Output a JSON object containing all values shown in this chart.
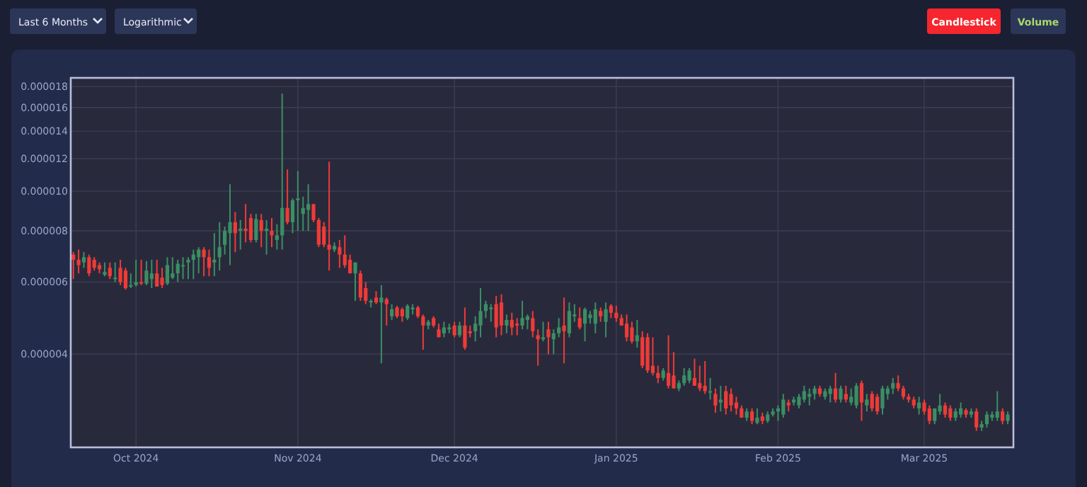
{
  "chart_data": {
    "type": "candlestick",
    "log": true,
    "grid": true,
    "annotations": [
      "Last 6 Months",
      "Logarithmic",
      "Candlestick",
      "Volume"
    ],
    "xlim": [
      "2024-09-18T12:00",
      "2025-03-18T02:00"
    ],
    "xticks": [
      {
        "value": "2024-10-01",
        "label": "Oct 2024"
      },
      {
        "value": "2024-11-01",
        "label": "Nov 2024"
      },
      {
        "value": "2024-12-01",
        "label": "Dec 2024"
      },
      {
        "value": "2025-01-01",
        "label": "Jan 2025"
      },
      {
        "value": "2025-02-01",
        "label": "Feb 2025"
      },
      {
        "value": "2025-03-01",
        "label": "Mar 2025"
      }
    ],
    "ylim": [
      2.37e-06,
      1.89e-05
    ],
    "yticks": [
      {
        "value": 4e-06,
        "label": "0.000004"
      },
      {
        "value": 6e-06,
        "label": "0.000006"
      },
      {
        "value": 8e-06,
        "label": "0.000008"
      },
      {
        "value": 1e-05,
        "label": "0.000010"
      },
      {
        "value": 1.2e-05,
        "label": "0.000012"
      },
      {
        "value": 1.4e-05,
        "label": "0.000014"
      },
      {
        "value": 1.6e-05,
        "label": "0.000016"
      },
      {
        "value": 1.8e-05,
        "label": "0.000018"
      }
    ],
    "x": [
      "2024-09-19",
      "2024-09-20",
      "2024-09-21",
      "2024-09-22",
      "2024-09-23",
      "2024-09-24",
      "2024-09-25",
      "2024-09-26",
      "2024-09-27",
      "2024-09-28",
      "2024-09-29",
      "2024-09-30",
      "2024-10-01",
      "2024-10-02",
      "2024-10-03",
      "2024-10-04",
      "2024-10-05",
      "2024-10-06",
      "2024-10-07",
      "2024-10-08",
      "2024-10-09",
      "2024-10-10",
      "2024-10-11",
      "2024-10-12",
      "2024-10-13",
      "2024-10-14",
      "2024-10-15",
      "2024-10-16",
      "2024-10-17",
      "2024-10-18",
      "2024-10-19",
      "2024-10-20",
      "2024-10-21",
      "2024-10-22",
      "2024-10-23",
      "2024-10-24",
      "2024-10-25",
      "2024-10-26",
      "2024-10-27",
      "2024-10-28",
      "2024-10-29",
      "2024-10-30",
      "2024-10-31",
      "2024-11-01",
      "2024-11-02",
      "2024-11-03",
      "2024-11-04",
      "2024-11-05",
      "2024-11-06",
      "2024-11-07",
      "2024-11-08",
      "2024-11-09",
      "2024-11-10",
      "2024-11-11",
      "2024-11-12",
      "2024-11-13",
      "2024-11-14",
      "2024-11-15",
      "2024-11-16",
      "2024-11-17",
      "2024-11-18",
      "2024-11-19",
      "2024-11-20",
      "2024-11-21",
      "2024-11-22",
      "2024-11-23",
      "2024-11-24",
      "2024-11-25",
      "2024-11-26",
      "2024-11-27",
      "2024-11-28",
      "2024-11-29",
      "2024-11-30",
      "2024-12-01",
      "2024-12-02",
      "2024-12-03",
      "2024-12-04",
      "2024-12-05",
      "2024-12-06",
      "2024-12-07",
      "2024-12-08",
      "2024-12-09",
      "2024-12-10",
      "2024-12-11",
      "2024-12-12",
      "2024-12-13",
      "2024-12-14",
      "2024-12-15",
      "2024-12-16",
      "2024-12-17",
      "2024-12-18",
      "2024-12-19",
      "2024-12-20",
      "2024-12-21",
      "2024-12-22",
      "2024-12-23",
      "2024-12-24",
      "2024-12-25",
      "2024-12-26",
      "2024-12-27",
      "2024-12-28",
      "2024-12-29",
      "2024-12-30",
      "2024-12-31",
      "2025-01-01",
      "2025-01-02",
      "2025-01-03",
      "2025-01-04",
      "2025-01-05",
      "2025-01-06",
      "2025-01-07",
      "2025-01-08",
      "2025-01-09",
      "2025-01-10",
      "2025-01-11",
      "2025-01-12",
      "2025-01-13",
      "2025-01-14",
      "2025-01-15",
      "2025-01-16",
      "2025-01-17",
      "2025-01-18",
      "2025-01-19",
      "2025-01-20",
      "2025-01-21",
      "2025-01-22",
      "2025-01-23",
      "2025-01-24",
      "2025-01-25",
      "2025-01-26",
      "2025-01-27",
      "2025-01-28",
      "2025-01-29",
      "2025-01-30",
      "2025-01-31",
      "2025-02-01",
      "2025-02-02",
      "2025-02-03",
      "2025-02-04",
      "2025-02-05",
      "2025-02-06",
      "2025-02-07",
      "2025-02-08",
      "2025-02-09",
      "2025-02-10",
      "2025-02-11",
      "2025-02-12",
      "2025-02-13",
      "2025-02-14",
      "2025-02-15",
      "2025-02-16",
      "2025-02-17",
      "2025-02-18",
      "2025-02-19",
      "2025-02-20",
      "2025-02-21",
      "2025-02-22",
      "2025-02-23",
      "2025-02-24",
      "2025-02-25",
      "2025-02-26",
      "2025-02-27",
      "2025-02-28",
      "2025-03-01",
      "2025-03-02",
      "2025-03-03",
      "2025-03-04",
      "2025-03-05",
      "2025-03-06",
      "2025-03-07",
      "2025-03-08",
      "2025-03-09",
      "2025-03-10",
      "2025-03-11",
      "2025-03-12",
      "2025-03-13",
      "2025-03-14",
      "2025-03-15",
      "2025-03-16",
      "2025-03-17"
    ],
    "ohlc": [
      [
        7e-06,
        7.1e-06,
        6.1e-06,
        6.8e-06
      ],
      [
        6.8e-06,
        7.2e-06,
        6.3e-06,
        6.6e-06
      ],
      [
        6.7e-06,
        7.1e-06,
        6.5e-06,
        6.9e-06
      ],
      [
        6.9e-06,
        7e-06,
        6.2e-06,
        6.3e-06
      ],
      [
        6.8e-06,
        6.9e-06,
        6.4e-06,
        6.5e-06
      ],
      [
        6.6e-06,
        6.7e-06,
        6.3e-06,
        6.45e-06
      ],
      [
        6.25e-06,
        6.7e-06,
        6.2e-06,
        6.35e-06
      ],
      [
        6.5e-06,
        6.7e-06,
        6.1e-06,
        6.2e-06
      ],
      [
        6.1e-06,
        6.7e-06,
        6e-06,
        6.15e-06
      ],
      [
        6.5e-06,
        6.8e-06,
        5.9e-06,
        6e-06
      ],
      [
        6.4e-06,
        6.5e-06,
        5.75e-06,
        5.8e-06
      ],
      [
        5.85e-06,
        6.3e-06,
        5.8e-06,
        5.9e-06
      ],
      [
        5.9e-06,
        6.8e-06,
        5.85e-06,
        6e-06
      ],
      [
        6e-06,
        6.8e-06,
        5.9e-06,
        5.95e-06
      ],
      [
        5.95e-06,
        6.75e-06,
        5.9e-06,
        6.4e-06
      ],
      [
        6.1e-06,
        6.8e-06,
        5.8e-06,
        6.3e-06
      ],
      [
        6.3e-06,
        6.8e-06,
        5.85e-06,
        5.85e-06
      ],
      [
        6.15e-06,
        6.5e-06,
        5.8e-06,
        5.9e-06
      ],
      [
        5.95e-06,
        6.9e-06,
        5.9e-06,
        6.6e-06
      ],
      [
        6.15e-06,
        6.9e-06,
        6.1e-06,
        6.3e-06
      ],
      [
        6.3e-06,
        6.8e-06,
        6e-06,
        6.65e-06
      ],
      [
        6.6e-06,
        6.9e-06,
        6.1e-06,
        6.6e-06
      ],
      [
        6.7e-06,
        6.9e-06,
        6.1e-06,
        6.8e-06
      ],
      [
        6.8e-06,
        7.2e-06,
        6.1e-06,
        7e-06
      ],
      [
        6.9e-06,
        7.3e-06,
        6.3e-06,
        7.2e-06
      ],
      [
        7.2e-06,
        7.3e-06,
        6.2e-06,
        6.9e-06
      ],
      [
        6.9e-06,
        7.2e-06,
        6.2e-06,
        6.5e-06
      ],
      [
        6.7e-06,
        7.9e-06,
        6.2e-06,
        6.8e-06
      ],
      [
        6.9e-06,
        8.4e-06,
        6.4e-06,
        7.3e-06
      ],
      [
        7.4e-06,
        8.2e-06,
        7e-06,
        8e-06
      ],
      [
        7.9e-06,
        1.04e-05,
        6.6e-06,
        8.4e-06
      ],
      [
        8.4e-06,
        8.9e-06,
        7.1e-06,
        7.9e-06
      ],
      [
        8e-06,
        8.5e-06,
        7.2e-06,
        8.1e-06
      ],
      [
        8.1e-06,
        9.3e-06,
        7.5e-06,
        8e-06
      ],
      [
        8.6e-06,
        8.8e-06,
        7.5e-06,
        7.6e-06
      ],
      [
        7.6e-06,
        8.8e-06,
        7.5e-06,
        8.55e-06
      ],
      [
        8.5e-06,
        8.8e-06,
        7.3e-06,
        8e-06
      ],
      [
        8e-06,
        8.5e-06,
        7e-06,
        8.1e-06
      ],
      [
        8e-06,
        8.6e-06,
        7.3e-06,
        7.8e-06
      ],
      [
        7.6e-06,
        8.3e-06,
        7.2e-06,
        7.8e-06
      ],
      [
        7.8e-06,
        1.73e-05,
        7.2e-06,
        9.1e-06
      ],
      [
        9.1e-06,
        1.13e-05,
        8.3e-06,
        8.4e-06
      ],
      [
        8.4e-06,
        9.6e-06,
        7.9e-06,
        9.5e-06
      ],
      [
        9.5e-06,
        1.12e-05,
        8e-06,
        9.6e-06
      ],
      [
        8.8e-06,
        9.7e-06,
        8e-06,
        9.1e-06
      ],
      [
        9e-06,
        1.04e-05,
        8e-06,
        9.3e-06
      ],
      [
        9.3e-06,
        9.3e-06,
        8.4e-06,
        8.5e-06
      ],
      [
        8.5e-06,
        8.6e-06,
        7.3e-06,
        7.4e-06
      ],
      [
        8.2e-06,
        8.4e-06,
        7.3e-06,
        7.4e-06
      ],
      [
        7.4e-06,
        1.18e-05,
        6.4e-06,
        7.2e-06
      ],
      [
        7.2e-06,
        7.5e-06,
        7.1e-06,
        7.35e-06
      ],
      [
        7.3e-06,
        7.6e-06,
        6.5e-06,
        7e-06
      ],
      [
        7e-06,
        7.8e-06,
        6.5e-06,
        6.6e-06
      ],
      [
        6.8e-06,
        7e-06,
        6.3e-06,
        6.3e-06
      ],
      [
        6.3e-06,
        6.7e-06,
        5.4e-06,
        6.7e-06
      ],
      [
        6.3e-06,
        6.4e-06,
        5.4e-06,
        5.5e-06
      ],
      [
        5.8e-06,
        6e-06,
        5.3e-06,
        5.4e-06
      ],
      [
        5.35e-06,
        5.45e-06,
        5.2e-06,
        5.4e-06
      ],
      [
        5.5e-06,
        5.7e-06,
        5.3e-06,
        5.35e-06
      ],
      [
        5.35e-06,
        5.9e-06,
        3.8e-06,
        5.5e-06
      ],
      [
        5.45e-06,
        5.5e-06,
        4.7e-06,
        5.3e-06
      ],
      [
        4.95e-06,
        5.3e-06,
        4.85e-06,
        5.15e-06
      ],
      [
        5.2e-06,
        5.25e-06,
        4.9e-06,
        4.95e-06
      ],
      [
        5.15e-06,
        5.2e-06,
        4.8e-06,
        4.95e-06
      ],
      [
        4.9e-06,
        5.3e-06,
        4.85e-06,
        5.25e-06
      ],
      [
        5.15e-06,
        5.3e-06,
        5e-06,
        5.2e-06
      ],
      [
        5.2e-06,
        5.25e-06,
        4.9e-06,
        4.95e-06
      ],
      [
        4.95e-06,
        5e-06,
        4.1e-06,
        4.7e-06
      ],
      [
        4.7e-06,
        4.85e-06,
        4.6e-06,
        4.8e-06
      ],
      [
        4.9e-06,
        4.95e-06,
        4.65e-06,
        4.7e-06
      ],
      [
        4.6e-06,
        4.75e-06,
        4.4e-06,
        4.4e-06
      ],
      [
        4.5e-06,
        4.8e-06,
        4.4e-06,
        4.65e-06
      ],
      [
        4.6e-06,
        4.75e-06,
        4.5e-06,
        4.65e-06
      ],
      [
        4.7e-06,
        4.8e-06,
        4.4e-06,
        4.45e-06
      ],
      [
        4.45e-06,
        4.8e-06,
        4.4e-06,
        4.7e-06
      ],
      [
        4.7e-06,
        5.2e-06,
        4.1e-06,
        4.15e-06
      ],
      [
        4.55e-06,
        4.7e-06,
        4.4e-06,
        4.5e-06
      ],
      [
        4.55e-06,
        4.95e-06,
        4.3e-06,
        4.75e-06
      ],
      [
        4.7e-06,
        5.8e-06,
        4.4e-06,
        5.1e-06
      ],
      [
        5.1e-06,
        5.4e-06,
        4.9e-06,
        5.3e-06
      ],
      [
        5.15e-06,
        5.3e-06,
        4.8e-06,
        5.2e-06
      ],
      [
        5.3e-06,
        5.55e-06,
        4.4e-06,
        4.65e-06
      ],
      [
        5.35e-06,
        5.6e-06,
        4.45e-06,
        4.7e-06
      ],
      [
        4.7e-06,
        5e-06,
        4.5e-06,
        4.85e-06
      ],
      [
        4.85e-06,
        5.05e-06,
        4.45e-06,
        4.65e-06
      ],
      [
        4.75e-06,
        4.9e-06,
        4.45e-06,
        4.7e-06
      ],
      [
        4.7e-06,
        5.4e-06,
        4.6e-06,
        4.9e-06
      ],
      [
        4.85e-06,
        5e-06,
        4.6e-06,
        4.95e-06
      ],
      [
        4.9e-06,
        5.1e-06,
        4.4e-06,
        4.55e-06
      ],
      [
        4.45e-06,
        4.6e-06,
        3.75e-06,
        4.35e-06
      ],
      [
        4.35e-06,
        4.8e-06,
        4.3e-06,
        4.4e-06
      ],
      [
        4.6e-06,
        4.8e-06,
        4e-06,
        4.4e-06
      ],
      [
        4.35e-06,
        4.6e-06,
        4e-06,
        4.5e-06
      ],
      [
        4.5e-06,
        4.9e-06,
        4.4e-06,
        4.65e-06
      ],
      [
        4.7e-06,
        5.5e-06,
        3.8e-06,
        4.55e-06
      ],
      [
        4.5e-06,
        5.35e-06,
        4.4e-06,
        5.1e-06
      ],
      [
        4.95e-06,
        5.3e-06,
        4.8e-06,
        5e-06
      ],
      [
        4.9e-06,
        5.2e-06,
        4.6e-06,
        4.65e-06
      ],
      [
        4.75e-06,
        5.2e-06,
        4.3e-06,
        5.15e-06
      ],
      [
        4.9e-06,
        5.1e-06,
        4.75e-06,
        5e-06
      ],
      [
        4.75e-06,
        5.35e-06,
        4.5e-06,
        5.15e-06
      ],
      [
        5.1e-06,
        5.2e-06,
        4.8e-06,
        4.95e-06
      ],
      [
        4.8e-06,
        5.35e-06,
        4.4e-06,
        5.15e-06
      ],
      [
        5.25e-06,
        5.3e-06,
        4.9e-06,
        5.05e-06
      ],
      [
        5.05e-06,
        5.25e-06,
        4.8e-06,
        4.9e-06
      ],
      [
        4.9e-06,
        5e-06,
        4.7e-06,
        4.7e-06
      ],
      [
        4.75e-06,
        5e-06,
        4.3e-06,
        4.4e-06
      ],
      [
        4.65e-06,
        4.8e-06,
        4.25e-06,
        4.3e-06
      ],
      [
        4.3e-06,
        4.85e-06,
        4.15e-06,
        4.45e-06
      ],
      [
        4.4e-06,
        4.55e-06,
        3.7e-06,
        3.75e-06
      ],
      [
        4.4e-06,
        4.5e-06,
        3.6e-06,
        3.65e-06
      ],
      [
        3.75e-06,
        4.4e-06,
        3.55e-06,
        3.6e-06
      ],
      [
        3.6e-06,
        3.75e-06,
        3.4e-06,
        3.5e-06
      ],
      [
        3.5e-06,
        3.7e-06,
        3.45e-06,
        3.65e-06
      ],
      [
        3.6e-06,
        4.45e-06,
        3.3e-06,
        3.35e-06
      ],
      [
        3.55e-06,
        4.05e-06,
        3.3e-06,
        3.3e-06
      ],
      [
        3.3e-06,
        3.45e-06,
        3.25e-06,
        3.4e-06
      ],
      [
        3.4e-06,
        3.7e-06,
        3.35e-06,
        3.55e-06
      ],
      [
        3.45e-06,
        3.7e-06,
        3.4e-06,
        3.65e-06
      ],
      [
        3.5e-06,
        3.9e-06,
        3.35e-06,
        3.35e-06
      ],
      [
        3.4e-06,
        3.75e-06,
        3.25e-06,
        3.3e-06
      ],
      [
        3.35e-06,
        3.85e-06,
        3.2e-06,
        3.25e-06
      ],
      [
        3.25e-06,
        3.5e-06,
        3.1e-06,
        3.25e-06
      ],
      [
        3.2e-06,
        3.3e-06,
        2.88e-06,
        3e-06
      ],
      [
        3.05e-06,
        3.35e-06,
        2.9e-06,
        3.1e-06
      ],
      [
        3.25e-06,
        3.35e-06,
        2.85e-06,
        2.95e-06
      ],
      [
        3.2e-06,
        3.3e-06,
        2.9e-06,
        3e-06
      ],
      [
        3.05e-06,
        3.15e-06,
        2.85e-06,
        2.95e-06
      ],
      [
        2.95e-06,
        3e-06,
        2.8e-06,
        2.8e-06
      ],
      [
        2.8e-06,
        2.95e-06,
        2.75e-06,
        2.9e-06
      ],
      [
        2.9e-06,
        2.95e-06,
        2.7e-06,
        2.75e-06
      ],
      [
        2.72e-06,
        2.95e-06,
        2.7e-06,
        2.8e-06
      ],
      [
        2.82e-06,
        2.88e-06,
        2.7e-06,
        2.75e-06
      ],
      [
        2.75e-06,
        2.9e-06,
        2.72e-06,
        2.85e-06
      ],
      [
        2.85e-06,
        2.95e-06,
        2.82e-06,
        2.9e-06
      ],
      [
        2.9e-06,
        3e-06,
        2.75e-06,
        2.95e-06
      ],
      [
        2.85e-06,
        3.2e-06,
        2.8e-06,
        3.1e-06
      ],
      [
        3.05e-06,
        3.1e-06,
        2.9e-06,
        3e-06
      ],
      [
        3.05e-06,
        3.15e-06,
        3e-06,
        3.1e-06
      ],
      [
        3e-06,
        3.2e-06,
        2.95e-06,
        3.15e-06
      ],
      [
        3.1e-06,
        3.35e-06,
        3.05e-06,
        3.25e-06
      ],
      [
        3.15e-06,
        3.3e-06,
        3e-06,
        3.2e-06
      ],
      [
        3.2e-06,
        3.35e-06,
        3.1e-06,
        3.3e-06
      ],
      [
        3.3e-06,
        3.35e-06,
        3.15e-06,
        3.2e-06
      ],
      [
        3.15e-06,
        3.3e-06,
        3.1e-06,
        3.25e-06
      ],
      [
        3.2e-06,
        3.35e-06,
        3.05e-06,
        3.3e-06
      ],
      [
        3.3e-06,
        3.6e-06,
        3.05e-06,
        3.1e-06
      ],
      [
        3.1e-06,
        3.35e-06,
        3.05e-06,
        3.3e-06
      ],
      [
        3.2e-06,
        3.35e-06,
        3.05e-06,
        3.1e-06
      ],
      [
        3.05e-06,
        3.3e-06,
        3e-06,
        3.15e-06
      ],
      [
        3e-06,
        3.4e-06,
        2.95e-06,
        3.35e-06
      ],
      [
        3.4e-06,
        3.45e-06,
        2.75e-06,
        3.05e-06
      ],
      [
        3e-06,
        3.2e-06,
        2.9e-06,
        3.1e-06
      ],
      [
        3.2e-06,
        3.25e-06,
        2.9e-06,
        2.95e-06
      ],
      [
        3.15e-06,
        3.2e-06,
        2.85e-06,
        2.9e-06
      ],
      [
        2.95e-06,
        3.35e-06,
        2.85e-06,
        3.3e-06
      ],
      [
        3.2e-06,
        3.35e-06,
        3.1e-06,
        3.3e-06
      ],
      [
        3.3e-06,
        3.5e-06,
        3.2e-06,
        3.4e-06
      ],
      [
        3.4e-06,
        3.55e-06,
        3.25e-06,
        3.3e-06
      ],
      [
        3.3e-06,
        3.35e-06,
        3.1e-06,
        3.15e-06
      ],
      [
        3.15e-06,
        3.2e-06,
        3.05e-06,
        3.1e-06
      ],
      [
        3.1e-06,
        3.15e-06,
        2.95e-06,
        3e-06
      ],
      [
        2.95e-06,
        3.15e-06,
        2.85e-06,
        3.05e-06
      ],
      [
        3.05e-06,
        3.1e-06,
        2.85e-06,
        2.9e-06
      ],
      [
        2.95e-06,
        3e-06,
        2.7e-06,
        2.75e-06
      ],
      [
        2.75e-06,
        2.95e-06,
        2.7e-06,
        2.95e-06
      ],
      [
        2.9e-06,
        3.2e-06,
        2.85e-06,
        3e-06
      ],
      [
        3e-06,
        3.05e-06,
        2.8e-06,
        2.85e-06
      ],
      [
        2.95e-06,
        3e-06,
        2.75e-06,
        2.8e-06
      ],
      [
        2.8e-06,
        2.95e-06,
        2.75e-06,
        2.9e-06
      ],
      [
        2.85e-06,
        3.05e-06,
        2.8e-06,
        2.95e-06
      ],
      [
        2.92e-06,
        2.95e-06,
        2.8e-06,
        2.85e-06
      ],
      [
        2.85e-06,
        2.95e-06,
        2.8e-06,
        2.9e-06
      ],
      [
        2.9e-06,
        2.95e-06,
        2.6e-06,
        2.65e-06
      ],
      [
        2.65e-06,
        2.75e-06,
        2.6e-06,
        2.7e-06
      ],
      [
        2.7e-06,
        2.9e-06,
        2.65e-06,
        2.85e-06
      ],
      [
        2.8e-06,
        2.9e-06,
        2.75e-06,
        2.85e-06
      ],
      [
        2.8e-06,
        3.25e-06,
        2.75e-06,
        2.9e-06
      ],
      [
        2.9e-06,
        2.95e-06,
        2.7e-06,
        2.75e-06
      ],
      [
        2.75e-06,
        2.9e-06,
        2.7e-06,
        2.85e-06
      ]
    ]
  }
}
